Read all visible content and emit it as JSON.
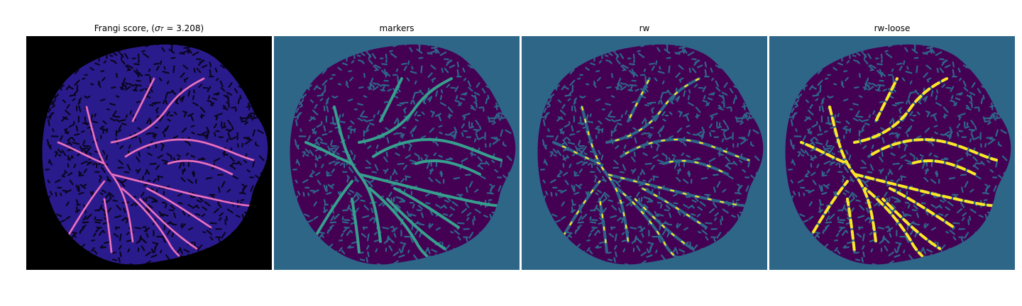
{
  "panels": [
    {
      "title_prefix": "Frangi score, (",
      "title_sigma": "σ",
      "title_sub": "T",
      "title_suffix": " = 3.208)",
      "background": "#000000",
      "blob_fill": "#2a1b8c",
      "texture_color": "#0a0620",
      "vessel_color": "#d24fb2",
      "vessel_highlight": "#f5a7c9"
    },
    {
      "title": "markers",
      "background": "#2e6688",
      "blob_fill": "#440154",
      "texture_color": "#2e6688",
      "vessel_color": "#36a08c"
    },
    {
      "title": "rw",
      "background": "#2e6688",
      "blob_fill": "#440154",
      "texture_color": "#2e6688",
      "vessel_color": "#2e6688",
      "highlight_color": "#fde725"
    },
    {
      "title": "rw-loose",
      "background": "#2e6688",
      "blob_fill": "#440154",
      "texture_color": "#2e6688",
      "vessel_color": "#2e6688",
      "highlight_color": "#fde725"
    }
  ]
}
